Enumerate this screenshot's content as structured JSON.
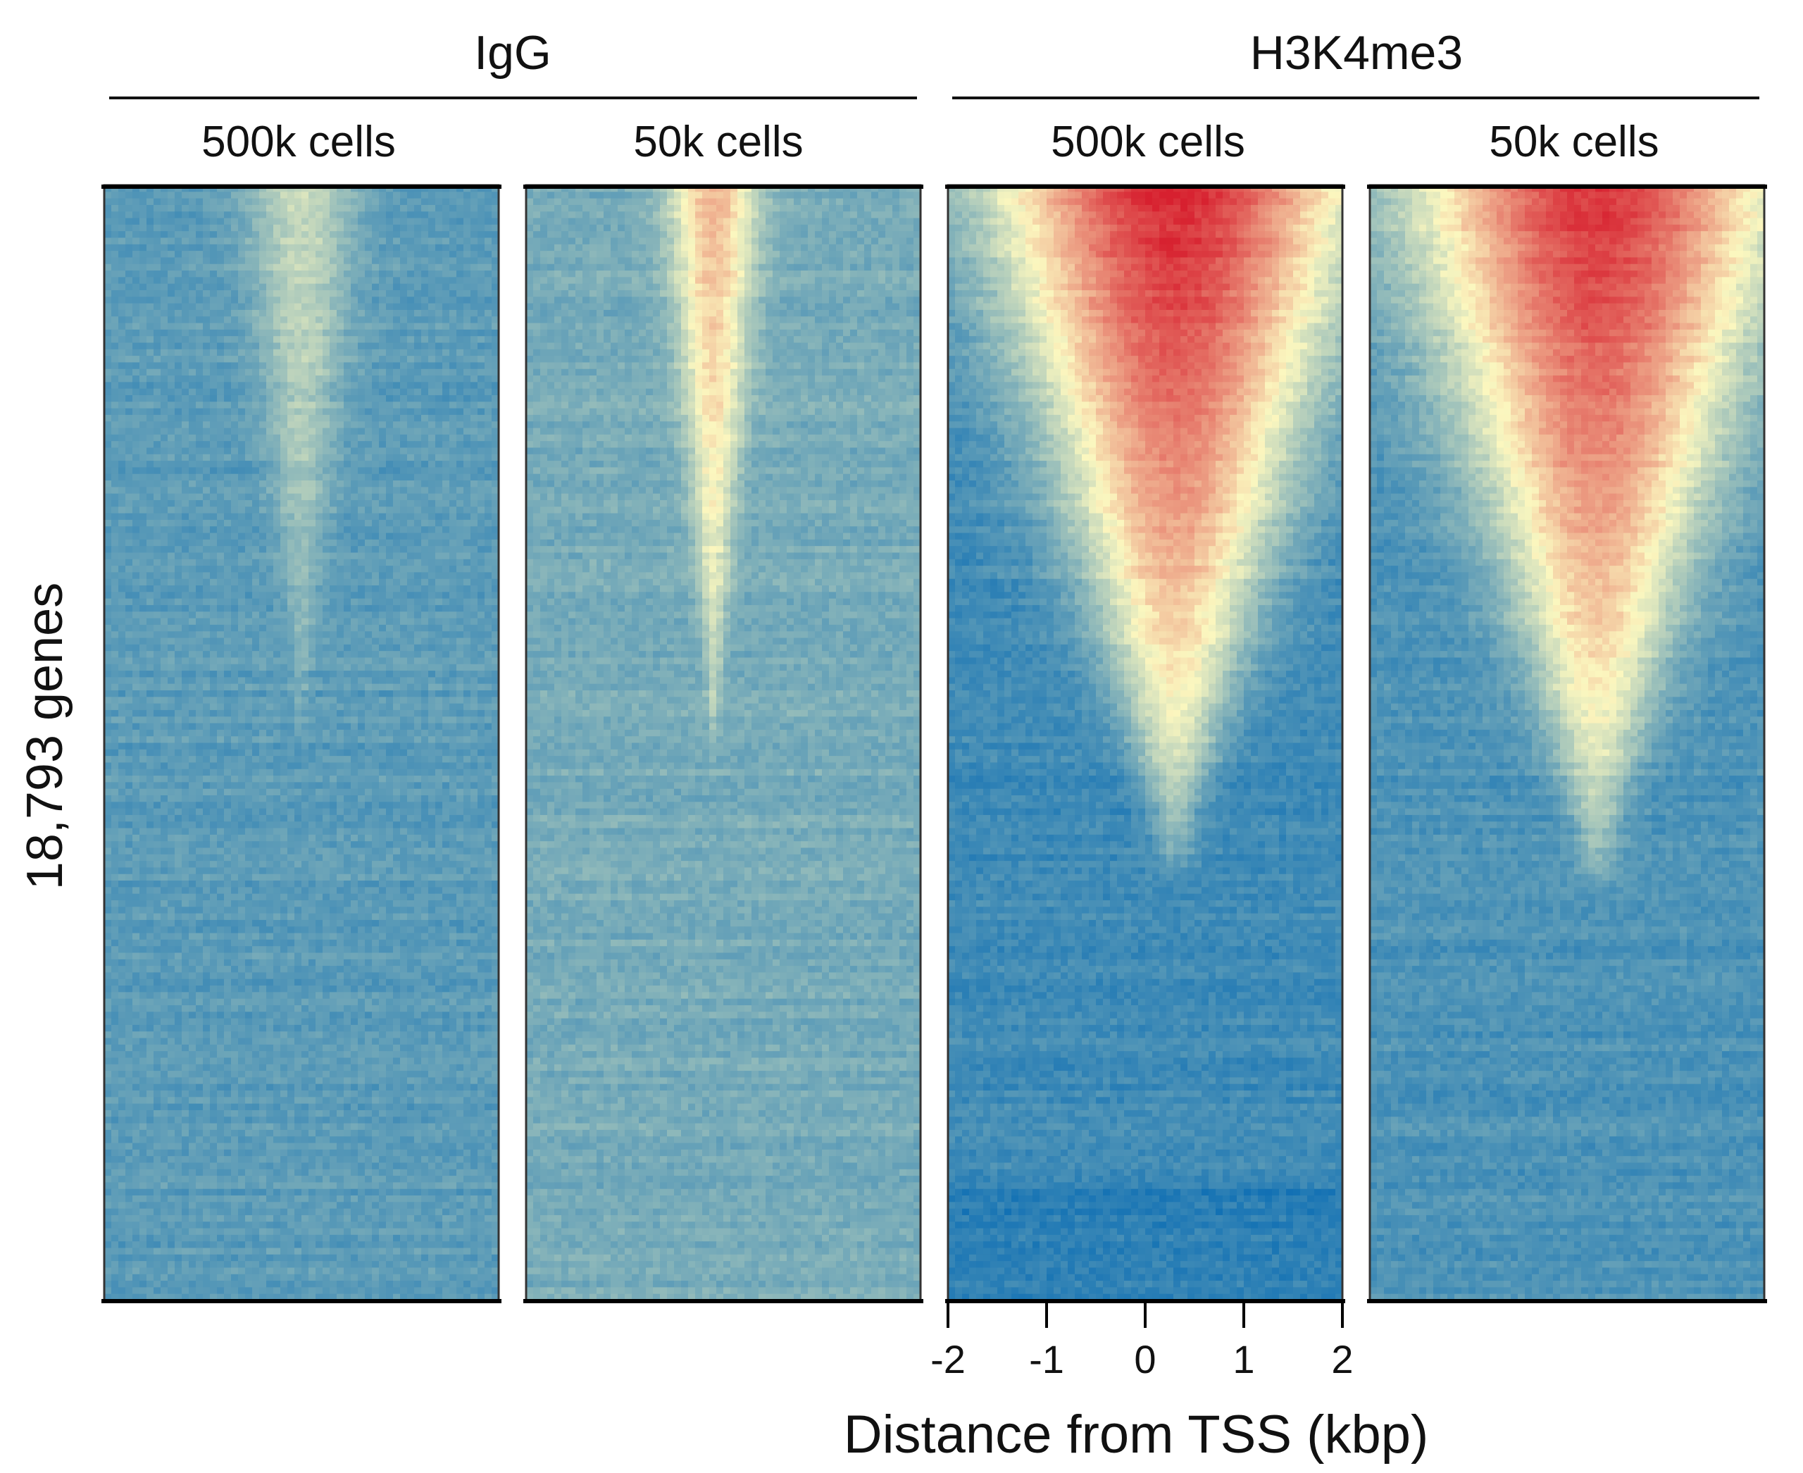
{
  "chart_data": {
    "type": "heatmap",
    "title": "",
    "ylabel": "18,793 genes",
    "xlabel": "Distance from TSS (kbp)",
    "xlim": [
      -2,
      2
    ],
    "x_ticks": [
      -2,
      -1,
      0,
      1,
      2
    ],
    "rows": 18793,
    "colors": {
      "low": "#1170b4",
      "mid": "#fbf7bf",
      "high": "#d7202f"
    },
    "groups": [
      {
        "label": "IgG",
        "panels": [
          0,
          1
        ]
      },
      {
        "label": "H3K4me3",
        "panels": [
          2,
          3
        ]
      }
    ],
    "panels": [
      {
        "label": "500k cells",
        "group": "IgG",
        "profile": {
          "peak_center_kbp": 0.0,
          "peak_half_width_kbp": 0.7,
          "top_intensity": 0.4,
          "signal_fraction_of_rows": 0.5,
          "background": 0.16,
          "enrichment": "weak"
        }
      },
      {
        "label": "50k cells",
        "group": "IgG",
        "profile": {
          "peak_center_kbp": -0.1,
          "peak_half_width_kbp": 0.55,
          "top_intensity": 0.66,
          "signal_fraction_of_rows": 0.52,
          "background": 0.22,
          "enrichment": "moderate"
        }
      },
      {
        "label": "500k cells",
        "group": "H3K4me3",
        "profile": {
          "peak_center_kbp": 0.3,
          "peak_half_width_kbp": 2.3,
          "top_intensity": 0.99,
          "signal_fraction_of_rows": 0.62,
          "background": 0.1,
          "enrichment": "strong"
        }
      },
      {
        "label": "50k cells",
        "group": "H3K4me3",
        "profile": {
          "peak_center_kbp": 0.3,
          "peak_half_width_kbp": 2.3,
          "top_intensity": 0.96,
          "signal_fraction_of_rows": 0.63,
          "background": 0.13,
          "enrichment": "strong"
        }
      }
    ]
  }
}
